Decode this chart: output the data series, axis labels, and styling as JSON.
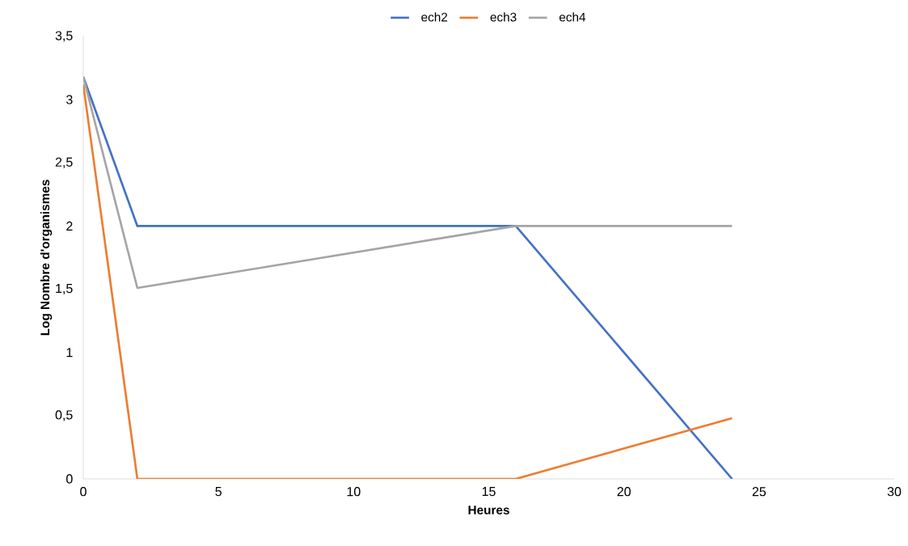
{
  "chart_data": {
    "type": "line",
    "xlabel": "Heures",
    "ylabel": "Log Nombre d'organismes",
    "x": [
      0,
      2,
      16,
      24
    ],
    "series": [
      {
        "name": "ech2",
        "color": "#4472c4",
        "values": [
          3.18,
          2,
          2,
          0
        ]
      },
      {
        "name": "ech3",
        "color": "#ed7d31",
        "values": [
          3.12,
          0,
          0,
          0.48
        ]
      },
      {
        "name": "ech4",
        "color": "#a5a5a5",
        "values": [
          3.18,
          1.51,
          2,
          2
        ]
      }
    ],
    "xlim": [
      0,
      30
    ],
    "xticks": [
      0,
      5,
      10,
      15,
      20,
      25,
      30
    ],
    "ylim": [
      0,
      3.5
    ],
    "yticks": [
      0,
      {
        "value": 0.5,
        "label": "0,5"
      },
      1,
      {
        "value": 1.5,
        "label": "1,5"
      },
      2,
      {
        "value": 2.5,
        "label": "2,5"
      },
      3,
      {
        "value": 3.5,
        "label": "3,5"
      }
    ],
    "grid": false,
    "legend": "top",
    "marker": "none",
    "line_style": "solid"
  }
}
